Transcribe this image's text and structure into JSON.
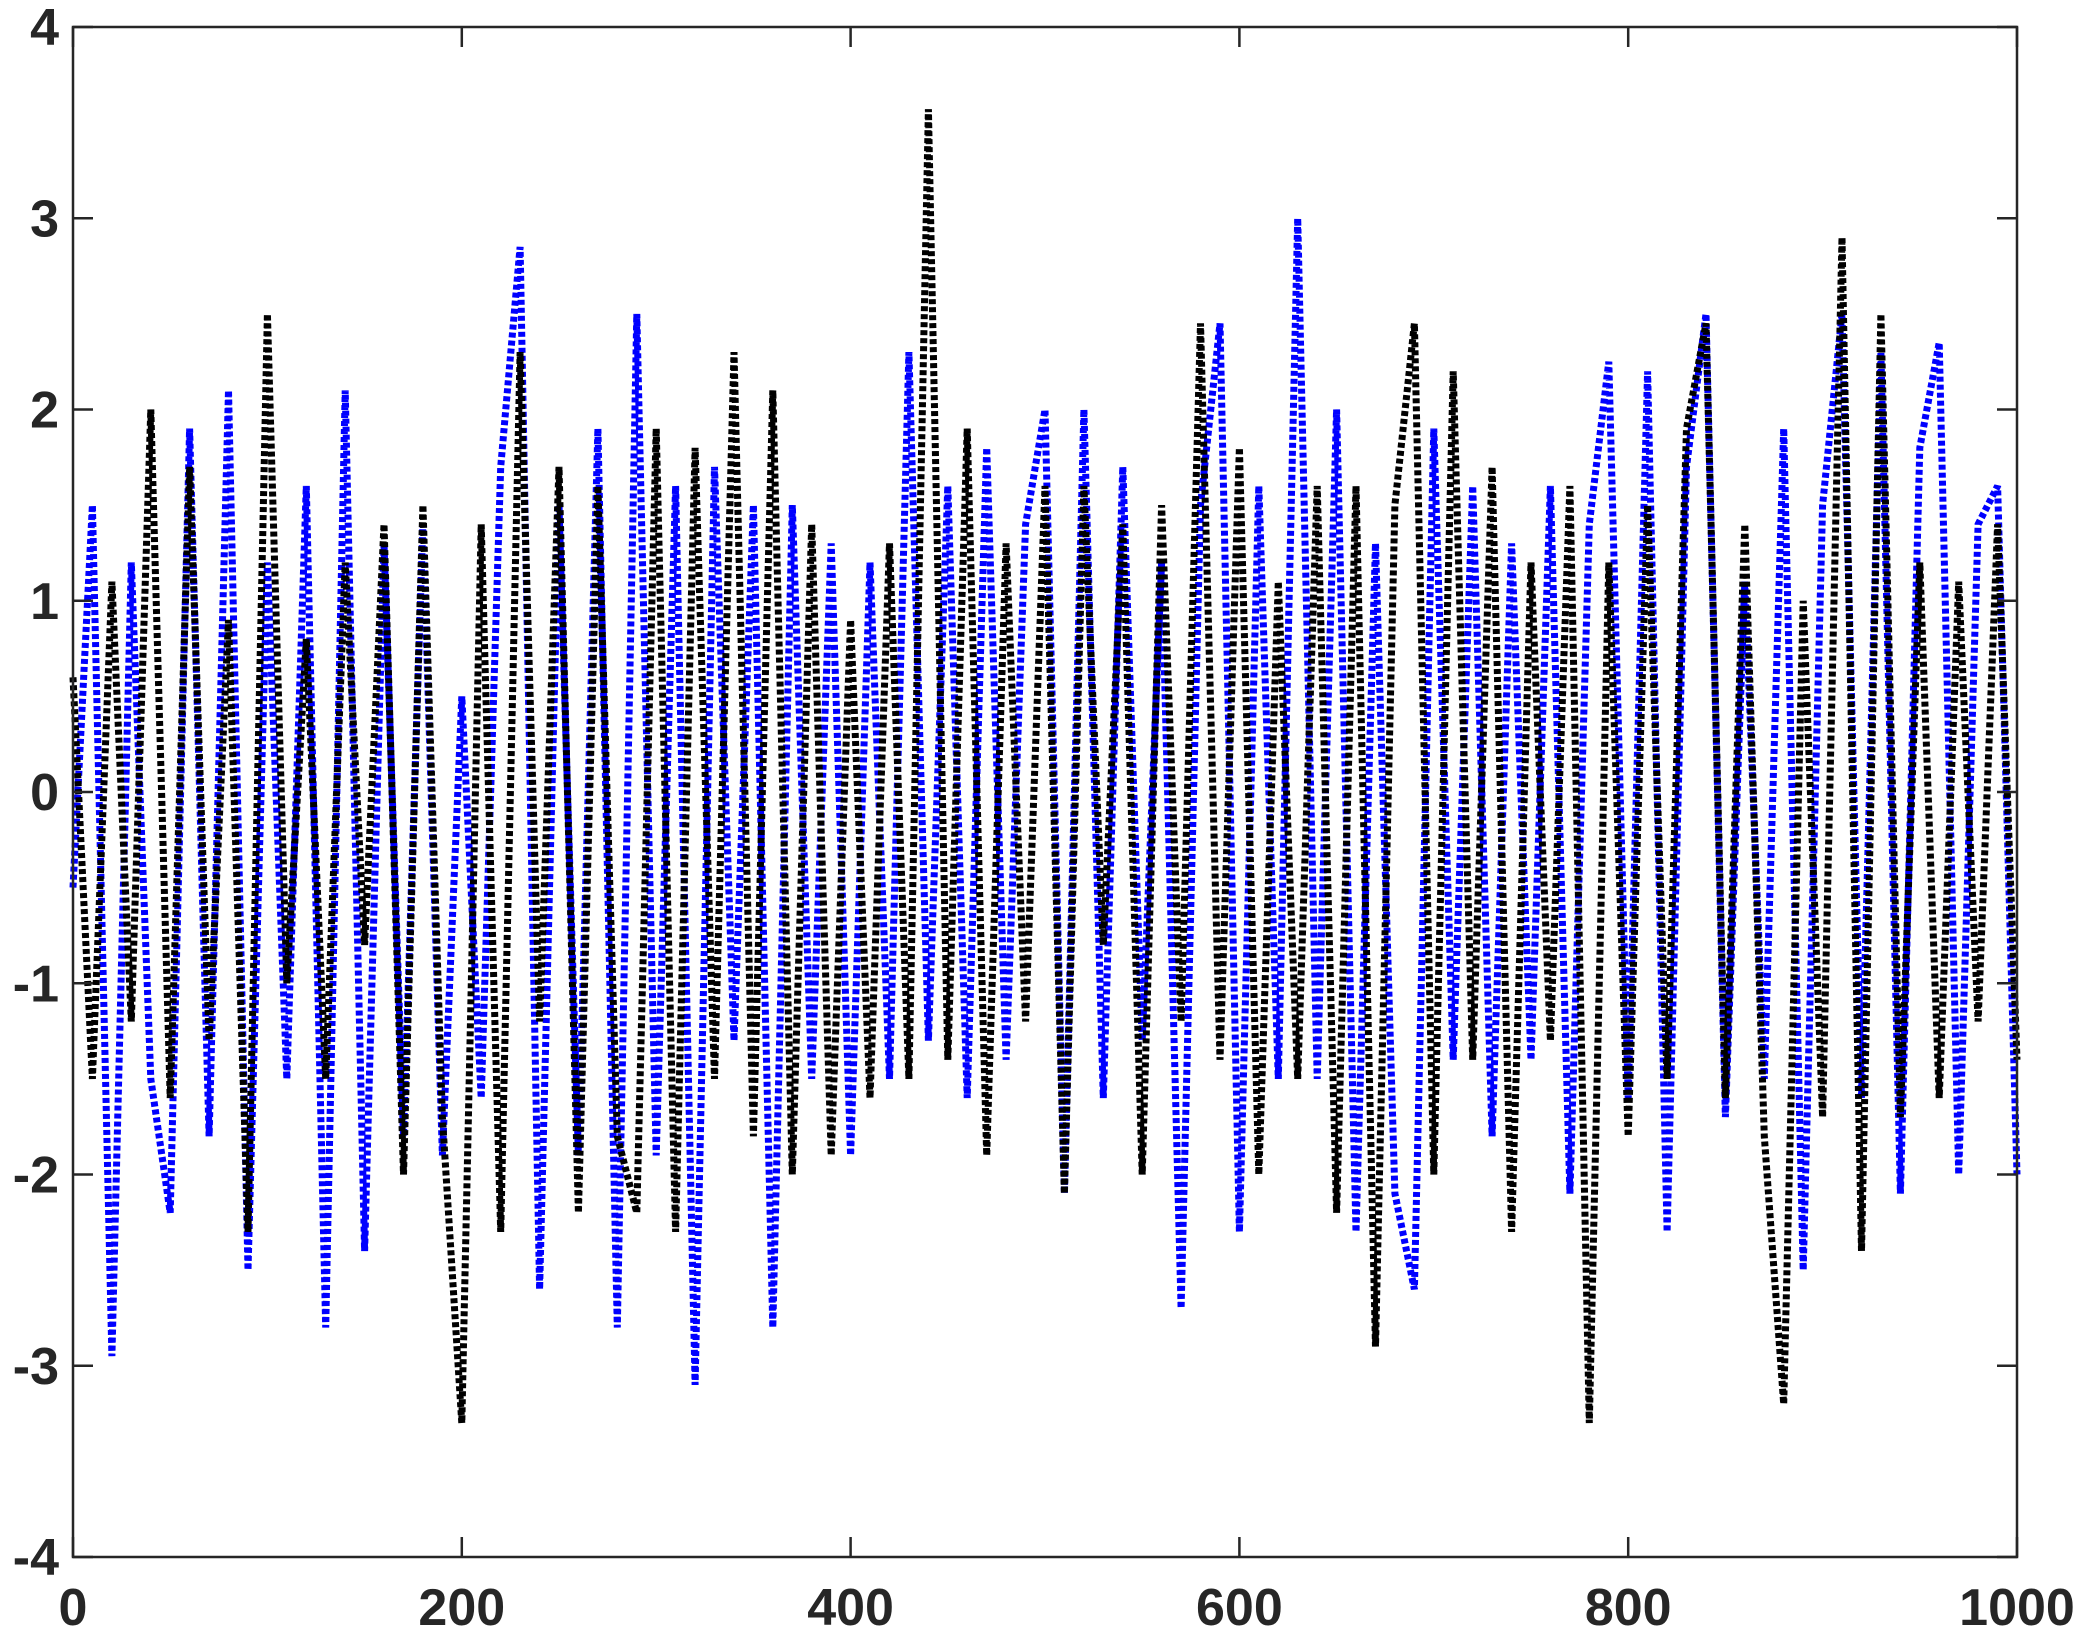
{
  "chart_data": {
    "type": "line",
    "x": [
      0,
      10,
      20,
      30,
      40,
      50,
      60,
      70,
      80,
      90,
      100,
      110,
      120,
      130,
      140,
      150,
      160,
      170,
      180,
      190,
      200,
      210,
      220,
      230,
      240,
      250,
      260,
      270,
      280,
      290,
      300,
      310,
      320,
      330,
      340,
      350,
      360,
      370,
      380,
      390,
      400,
      410,
      420,
      430,
      440,
      450,
      460,
      470,
      480,
      490,
      500,
      510,
      520,
      530,
      540,
      550,
      560,
      570,
      580,
      590,
      600,
      610,
      620,
      630,
      640,
      650,
      660,
      670,
      680,
      690,
      700,
      710,
      720,
      730,
      740,
      750,
      760,
      770,
      780,
      790,
      800,
      810,
      820,
      830,
      840,
      850,
      860,
      870,
      880,
      890,
      900,
      910,
      920,
      930,
      940,
      950,
      960,
      970,
      980,
      990,
      1000
    ],
    "series": [
      {
        "color": "#0000ff",
        "values": [
          -0.5,
          1.5,
          -2.95,
          1.2,
          -1.5,
          -2.2,
          1.9,
          -1.8,
          2.1,
          -2.5,
          1.2,
          -1.5,
          1.6,
          -2.8,
          2.1,
          -2.4,
          1.3,
          -1.8,
          1.4,
          -1.9,
          0.5,
          -1.6,
          1.7,
          2.85,
          -2.6,
          1.5,
          -1.9,
          1.9,
          -2.8,
          2.5,
          -1.9,
          1.6,
          -3.1,
          1.7,
          -1.3,
          1.5,
          -2.8,
          1.5,
          -1.5,
          1.3,
          -1.9,
          1.2,
          -1.5,
          2.3,
          -1.3,
          1.6,
          -1.6,
          1.8,
          -1.4,
          1.4,
          2.0,
          -2.1,
          2.0,
          -1.6,
          1.7,
          -1.3,
          1.2,
          -2.7,
          1.5,
          2.45,
          -2.3,
          1.6,
          -1.5,
          3.0,
          -1.5,
          2.0,
          -2.3,
          1.3,
          -2.1,
          -2.6,
          1.9,
          -1.4,
          1.6,
          -1.8,
          1.3,
          -1.4,
          1.6,
          -2.1,
          1.4,
          2.25,
          -1.6,
          2.2,
          -2.3,
          1.7,
          2.5,
          -1.7,
          1.1,
          -1.5,
          1.9,
          -2.5,
          1.5,
          2.5,
          -1.6,
          2.3,
          -2.1,
          1.8,
          2.35,
          -2.0,
          1.4,
          1.6,
          -2.0
        ]
      },
      {
        "color": "#000000",
        "values": [
          0.6,
          -1.5,
          1.1,
          -1.2,
          2.0,
          -1.6,
          1.7,
          -1.3,
          0.9,
          -2.3,
          2.5,
          -1.0,
          0.8,
          -1.5,
          1.2,
          -0.8,
          1.4,
          -2.0,
          1.5,
          -1.7,
          -3.3,
          1.4,
          -2.3,
          2.3,
          -1.2,
          1.7,
          -2.2,
          1.6,
          -1.8,
          -2.2,
          1.9,
          -2.3,
          1.8,
          -1.5,
          2.3,
          -1.8,
          2.1,
          -2.0,
          1.4,
          -1.9,
          0.9,
          -1.6,
          1.3,
          -1.5,
          3.57,
          -1.4,
          1.9,
          -1.9,
          1.3,
          -1.2,
          1.6,
          -2.1,
          1.6,
          -0.8,
          1.4,
          -2.0,
          1.5,
          -1.2,
          2.45,
          -1.4,
          1.8,
          -2.0,
          1.1,
          -1.5,
          1.6,
          -2.2,
          1.6,
          -2.9,
          1.5,
          2.45,
          -2.0,
          2.2,
          -1.4,
          1.7,
          -2.3,
          1.2,
          -1.3,
          1.6,
          -3.3,
          1.2,
          -1.8,
          1.5,
          -1.5,
          1.9,
          2.45,
          -1.6,
          1.4,
          -1.8,
          -3.2,
          1.0,
          -1.7,
          2.9,
          -2.4,
          2.5,
          -1.7,
          1.2,
          -1.6,
          1.1,
          -1.2,
          1.4,
          -1.4
        ]
      }
    ],
    "xlim": [
      0,
      1000
    ],
    "xticks": [
      0,
      200,
      400,
      600,
      800,
      1000
    ],
    "ylim": [
      -4,
      4
    ],
    "yticks": [
      -4,
      -3,
      -2,
      -1,
      0,
      1,
      2,
      3,
      4
    ],
    "grid": false,
    "dashed": true
  }
}
